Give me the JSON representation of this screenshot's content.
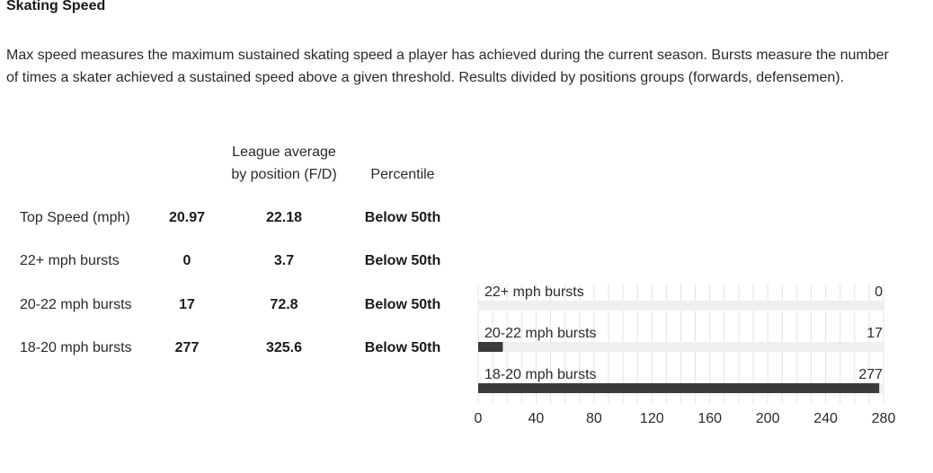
{
  "title": "Skating Speed",
  "description": "Max speed measures the maximum sustained skating speed a player has achieved during the current season. Bursts measure the number of times a skater achieved a sustained speed above a given threshold. Results divided by positions groups (forwards, defensemen).",
  "table": {
    "headers": {
      "league_avg_line1": "League average",
      "league_avg_line2": "by position (F/D)",
      "percentile": "Percentile"
    },
    "rows": [
      {
        "label": "Top Speed (mph)",
        "value": "20.97",
        "league_avg": "22.18",
        "percentile": "Below 50th"
      },
      {
        "label": "22+ mph bursts",
        "value": "0",
        "league_avg": "3.7",
        "percentile": "Below 50th"
      },
      {
        "label": "20-22 mph bursts",
        "value": "17",
        "league_avg": "72.8",
        "percentile": "Below 50th"
      },
      {
        "label": "18-20 mph bursts",
        "value": "277",
        "league_avg": "325.6",
        "percentile": "Below 50th"
      }
    ]
  },
  "chart_data": {
    "type": "bar",
    "orientation": "horizontal",
    "categories": [
      "22+ mph bursts",
      "20-22 mph bursts",
      "18-20 mph bursts"
    ],
    "values": [
      0,
      17,
      277
    ],
    "data_labels": [
      "0",
      "17",
      "277"
    ],
    "xlim": [
      0,
      280
    ],
    "x_ticks": [
      0,
      40,
      80,
      120,
      160,
      200,
      240,
      280
    ],
    "grid": true,
    "colors": {
      "bar": "#3a3a3a",
      "track": "#efeff1",
      "grid": "#e4e4e8"
    }
  }
}
